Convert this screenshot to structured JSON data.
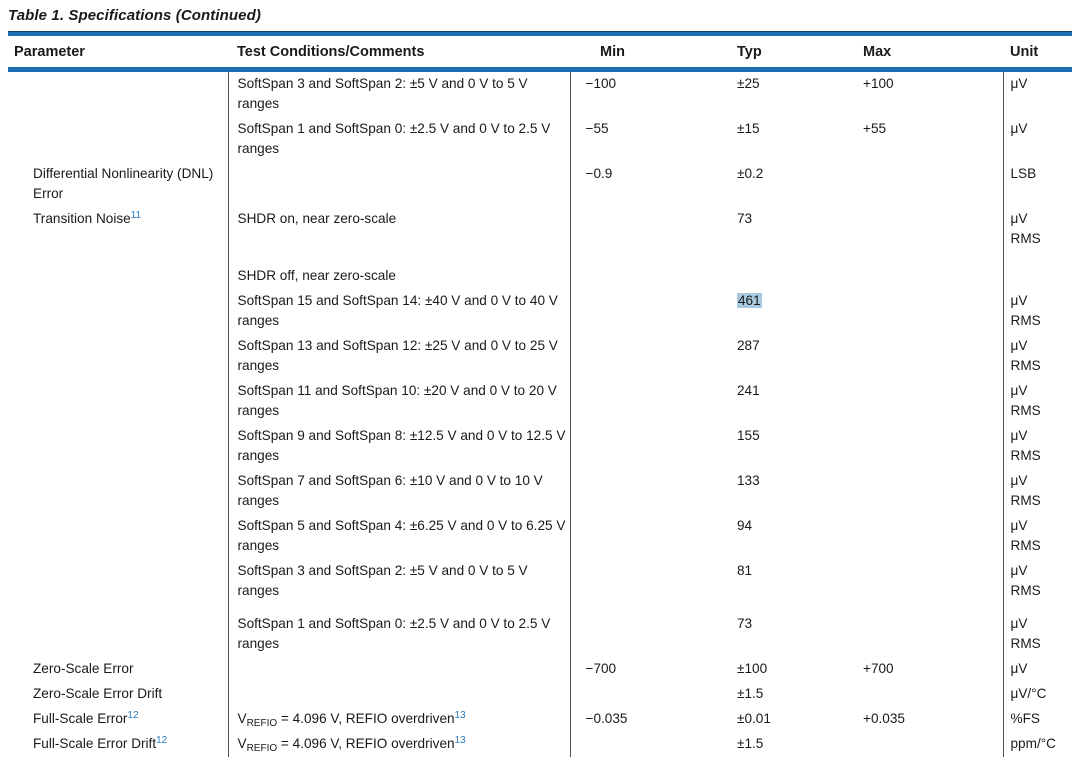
{
  "title": "Table 1. Specifications (Continued)",
  "colors": {
    "rule_blue": "#1d6fb5",
    "rule_dark": "#11436c",
    "link_blue": "#2e7dc1",
    "highlight": "#a9c9e1",
    "divider": "#4f4f4f",
    "text": "#1a1a1a"
  },
  "table": {
    "headers": [
      "Parameter",
      "Test Conditions/Comments",
      "Min",
      "Typ",
      "Max",
      "Unit"
    ],
    "rows": [
      {
        "param": [],
        "cond": [
          {
            "t": "SoftSpan 3 and SoftSpan 2: ±5 V and 0 V to 5 V ranges"
          }
        ],
        "min": "−100",
        "typ": "±25",
        "max": "+100",
        "unit": "μV"
      },
      {
        "param": [],
        "cond": [
          {
            "t": "SoftSpan 1 and SoftSpan 0: ±2.5 V and 0 V to 2.5 V ranges"
          }
        ],
        "min": "−55",
        "typ": "±15",
        "max": "+55",
        "unit": "μV"
      },
      {
        "param": [
          {
            "t": "Differential Nonlinearity (DNL) Error"
          }
        ],
        "cond": [],
        "min": "−0.9",
        "typ": "±0.2",
        "max": "",
        "unit": "LSB"
      },
      {
        "param": [
          {
            "t": "Transition Noise"
          },
          {
            "t": "11",
            "s": "sup"
          }
        ],
        "cond": [
          {
            "t": "SHDR on, near zero-scale"
          }
        ],
        "min": "",
        "typ": "73",
        "max": "",
        "unit": "μV\nRMS"
      },
      {
        "param": [],
        "cond": [
          {
            "t": "SHDR off, near zero-scale"
          }
        ],
        "min": "",
        "typ": "",
        "max": "",
        "unit": "",
        "gap": "lg"
      },
      {
        "param": [],
        "cond": [
          {
            "t": "SoftSpan 15 and SoftSpan 14: ±40 V and 0 V to 40 V ranges"
          }
        ],
        "min": "",
        "typ": "461",
        "max": "",
        "unit": "μV\nRMS",
        "typ_highlight": true
      },
      {
        "param": [],
        "cond": [
          {
            "t": "SoftSpan 13 and SoftSpan 12: ±25 V and 0 V to 25 V ranges"
          }
        ],
        "min": "",
        "typ": "287",
        "max": "",
        "unit": "μV\nRMS"
      },
      {
        "param": [],
        "cond": [
          {
            "t": "SoftSpan 11 and SoftSpan 10: ±20 V and 0 V to 20 V ranges"
          }
        ],
        "min": "",
        "typ": "241",
        "max": "",
        "unit": "μV\nRMS"
      },
      {
        "param": [],
        "cond": [
          {
            "t": "SoftSpan 9 and SoftSpan 8: ±12.5 V and 0 V to 12.5 V ranges"
          }
        ],
        "min": "",
        "typ": "155",
        "max": "",
        "unit": "μV\nRMS"
      },
      {
        "param": [],
        "cond": [
          {
            "t": "SoftSpan 7 and SoftSpan 6: ±10 V and 0 V to 10 V ranges"
          }
        ],
        "min": "",
        "typ": "133",
        "max": "",
        "unit": "μV\nRMS"
      },
      {
        "param": [],
        "cond": [
          {
            "t": "SoftSpan 5 and SoftSpan 4: ±6.25 V and 0 V to 6.25 V ranges"
          }
        ],
        "min": "",
        "typ": "94",
        "max": "",
        "unit": "μV\nRMS"
      },
      {
        "param": [],
        "cond": [
          {
            "t": "SoftSpan 3 and SoftSpan 2: ±5 V and 0 V to 5 V ranges"
          }
        ],
        "min": "",
        "typ": "81",
        "max": "",
        "unit": "μV\nRMS"
      },
      {
        "param": [],
        "cond": [
          {
            "t": "SoftSpan 1 and SoftSpan 0: ±2.5 V and 0 V to 2.5 V ranges"
          }
        ],
        "min": "",
        "typ": "73",
        "max": "",
        "unit": "μV\nRMS",
        "gap": "sm"
      },
      {
        "param": [
          {
            "t": "Zero-Scale Error"
          }
        ],
        "cond": [],
        "min": "−700",
        "typ": "±100",
        "max": "+700",
        "unit": "μV"
      },
      {
        "param": [
          {
            "t": "Zero-Scale Error Drift"
          }
        ],
        "cond": [],
        "min": "",
        "typ": "±1.5",
        "max": "",
        "unit": "μV/°C"
      },
      {
        "param": [
          {
            "t": "Full-Scale Error"
          },
          {
            "t": "12",
            "s": "sup"
          }
        ],
        "cond": [
          {
            "t": "V"
          },
          {
            "t": "REFIO",
            "s": "sub"
          },
          {
            "t": " = 4.096 V, REFIO overdriven"
          },
          {
            "t": "13",
            "s": "sup"
          }
        ],
        "min": "−0.035",
        "typ": "±0.01",
        "max": "+0.035",
        "unit": "%FS"
      },
      {
        "param": [
          {
            "t": "Full-Scale Error Drift"
          },
          {
            "t": "12",
            "s": "sup"
          }
        ],
        "cond": [
          {
            "t": "V"
          },
          {
            "t": "REFIO",
            "s": "sub"
          },
          {
            "t": " = 4.096 V, REFIO overdriven"
          },
          {
            "t": "13",
            "s": "sup"
          }
        ],
        "min": "",
        "typ": "±1.5",
        "max": "",
        "unit": "ppm/°C"
      }
    ]
  }
}
